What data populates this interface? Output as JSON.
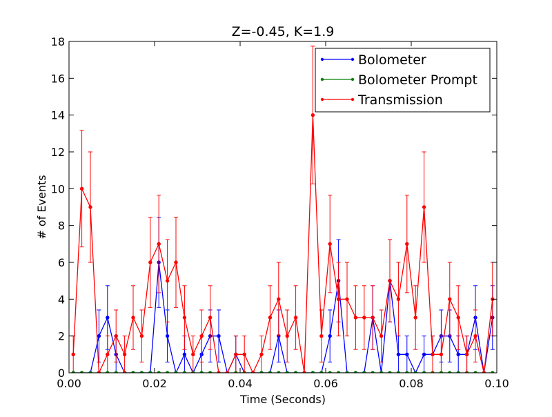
{
  "chart_data": {
    "type": "line",
    "title": "Z=-0.45, K=1.9",
    "xlabel": "Time (Seconds)",
    "ylabel": "# of Events",
    "xlim": [
      0.0,
      0.1
    ],
    "ylim": [
      0,
      18
    ],
    "x_ticks": [
      0.0,
      0.02,
      0.04,
      0.06,
      0.08,
      0.1
    ],
    "x_tick_labels": [
      "0.00",
      "0.02",
      "0.04",
      "0.06",
      "0.08",
      "0.10"
    ],
    "y_ticks": [
      0,
      2,
      4,
      6,
      8,
      10,
      12,
      14,
      16,
      18
    ],
    "y_tick_labels": [
      "0",
      "2",
      "4",
      "6",
      "8",
      "10",
      "12",
      "14",
      "16",
      "18"
    ],
    "grid": false,
    "legend_position": "top-right",
    "x": [
      0.001,
      0.003,
      0.005,
      0.007,
      0.009,
      0.011,
      0.013,
      0.015,
      0.017,
      0.019,
      0.021,
      0.023,
      0.025,
      0.027,
      0.029,
      0.031,
      0.033,
      0.035,
      0.037,
      0.039,
      0.041,
      0.043,
      0.045,
      0.047,
      0.049,
      0.051,
      0.053,
      0.055,
      0.057,
      0.059,
      0.061,
      0.063,
      0.065,
      0.067,
      0.069,
      0.071,
      0.073,
      0.075,
      0.077,
      0.079,
      0.081,
      0.083,
      0.085,
      0.087,
      0.089,
      0.091,
      0.093,
      0.095,
      0.097,
      0.099
    ],
    "series": [
      {
        "name": "Bolometer",
        "color": "#0000ff",
        "values": [
          0,
          0,
          0,
          2,
          3,
          1,
          0,
          0,
          0,
          0,
          6,
          2,
          0,
          1,
          0,
          1,
          2,
          2,
          0,
          1,
          0,
          0,
          0,
          0,
          2,
          0,
          0,
          0,
          0,
          0,
          2,
          5,
          0,
          0,
          0,
          3,
          0,
          5,
          1,
          1,
          0,
          1,
          1,
          2,
          2,
          1,
          1,
          3,
          0,
          3
        ],
        "error_bars": true
      },
      {
        "name": "Bolometer Prompt",
        "color": "#008000",
        "values": [
          0,
          0,
          0,
          0,
          0,
          0,
          0,
          0,
          0,
          0,
          0,
          0,
          0,
          0,
          0,
          0,
          0,
          0,
          0,
          0,
          0,
          0,
          0,
          0,
          0,
          0,
          0,
          0,
          0,
          0,
          0,
          0,
          0,
          0,
          0,
          0,
          0,
          0,
          0,
          0,
          0,
          0,
          0,
          0,
          0,
          0,
          0,
          0,
          0,
          0
        ],
        "error_bars": false
      },
      {
        "name": "Transmission",
        "color": "#ff0000",
        "values": [
          1,
          10,
          9,
          0,
          1,
          2,
          1,
          3,
          2,
          6,
          7,
          5,
          6,
          3,
          1,
          2,
          3,
          0,
          0,
          1,
          1,
          0,
          1,
          3,
          4,
          2,
          3,
          0,
          14,
          2,
          7,
          4,
          4,
          3,
          3,
          3,
          2,
          5,
          4,
          7,
          3,
          9,
          1,
          1,
          4,
          3,
          1,
          2,
          0,
          4
        ],
        "error_bars": true
      }
    ]
  }
}
